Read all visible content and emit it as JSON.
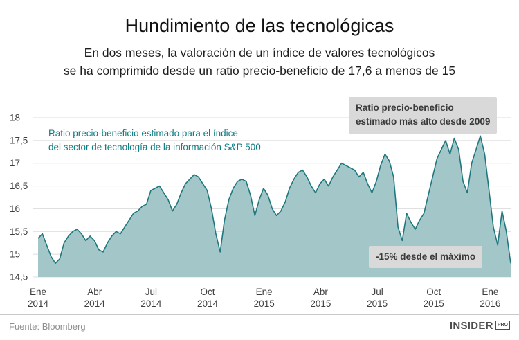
{
  "header": {
    "title": "Hundimiento de las tecnológicas",
    "subtitle_line1": "En dos meses, la valoración de un índice de valores tecnológicos",
    "subtitle_line2": "se ha comprimido desde un ratio precio-beneficio de 17,6 a menos de 15"
  },
  "chart_data": {
    "type": "area",
    "title": "Hundimiento de las tecnológicas",
    "series_label": {
      "line1": "Ratio precio-beneficio estimado para el índice",
      "line2": "del sector de tecnología de la información S&P 500"
    },
    "callout_high": {
      "line1": "Ratio precio-beneficio",
      "line2": "estimado más alto desde 2009"
    },
    "callout_drop": {
      "text": "-15% desde el máximo"
    },
    "ylim": [
      14.5,
      18
    ],
    "y_ticks": [
      {
        "label": "18",
        "value": 18
      },
      {
        "label": "17,5",
        "value": 17.5
      },
      {
        "label": "17",
        "value": 17
      },
      {
        "label": "16,5",
        "value": 16.5
      },
      {
        "label": "16",
        "value": 16
      },
      {
        "label": "15,5",
        "value": 15.5
      },
      {
        "label": "15",
        "value": 15
      },
      {
        "label": "14,5",
        "value": 14.5
      }
    ],
    "x_ticks": [
      {
        "month_label": "Ene",
        "year_label": "2014",
        "month_index": 0
      },
      {
        "month_label": "Abr",
        "year_label": "2014",
        "month_index": 3
      },
      {
        "month_label": "Jul",
        "year_label": "2014",
        "month_index": 6
      },
      {
        "month_label": "Oct",
        "year_label": "2014",
        "month_index": 9
      },
      {
        "month_label": "Ene",
        "year_label": "2015",
        "month_index": 12
      },
      {
        "month_label": "Abr",
        "year_label": "2015",
        "month_index": 15
      },
      {
        "month_label": "Jul",
        "year_label": "2015",
        "month_index": 18
      },
      {
        "month_label": "Oct",
        "year_label": "2015",
        "month_index": 21
      },
      {
        "month_label": "Ene",
        "year_label": "2016",
        "month_index": 24
      }
    ],
    "sampling": "weekly estimates read from plot",
    "values": [
      15.35,
      15.45,
      15.2,
      14.95,
      14.8,
      14.9,
      15.25,
      15.4,
      15.5,
      15.55,
      15.45,
      15.3,
      15.4,
      15.3,
      15.1,
      15.05,
      15.25,
      15.4,
      15.5,
      15.45,
      15.6,
      15.75,
      15.9,
      15.95,
      16.05,
      16.1,
      16.4,
      16.45,
      16.5,
      16.35,
      16.2,
      15.95,
      16.1,
      16.35,
      16.55,
      16.65,
      16.75,
      16.7,
      16.55,
      16.4,
      16.0,
      15.45,
      15.05,
      15.75,
      16.2,
      16.45,
      16.6,
      16.65,
      16.6,
      16.3,
      15.85,
      16.2,
      16.45,
      16.3,
      16.0,
      15.85,
      15.95,
      16.15,
      16.45,
      16.65,
      16.8,
      16.85,
      16.7,
      16.5,
      16.35,
      16.55,
      16.65,
      16.5,
      16.7,
      16.85,
      17.0,
      16.95,
      16.9,
      16.85,
      16.7,
      16.8,
      16.55,
      16.35,
      16.6,
      16.95,
      17.2,
      17.05,
      16.7,
      15.6,
      15.3,
      15.9,
      15.7,
      15.55,
      15.75,
      15.9,
      16.3,
      16.7,
      17.1,
      17.3,
      17.5,
      17.2,
      17.55,
      17.3,
      16.6,
      16.35,
      17.0,
      17.3,
      17.6,
      17.2,
      16.4,
      15.6,
      15.2,
      15.95,
      15.5,
      14.8
    ],
    "grid": "horizontal",
    "legend_position": "inside-top-left",
    "colors": {
      "area_fill": "#a3c7c9",
      "line": "#1f787d",
      "grid": "#dcdcdc",
      "axis_text": "#3f3f3f",
      "callout_bg": "#d9d9d9",
      "series_label_text": "#0e7e84"
    }
  },
  "footer": {
    "source": "Fuente: Bloomberg",
    "logo": {
      "main": "INSIDER",
      "badge": "PRO"
    }
  }
}
